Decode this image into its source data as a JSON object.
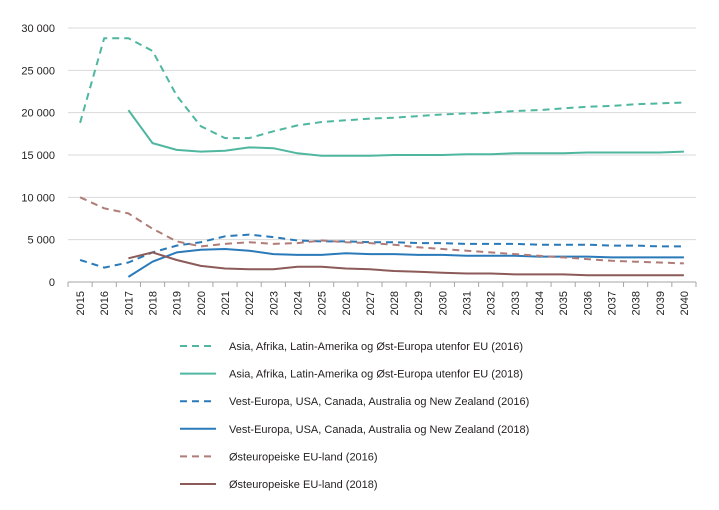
{
  "chart_data": {
    "type": "line",
    "title": "",
    "xlabel": "",
    "ylabel": "",
    "ylim": [
      0,
      30000
    ],
    "yticks": [
      0,
      5000,
      10000,
      15000,
      20000,
      25000,
      30000
    ],
    "ytick_labels": [
      "0",
      "5 000",
      "10 000",
      "15 000",
      "20 000",
      "25 000",
      "30 000"
    ],
    "x": [
      "2015",
      "2016",
      "2017",
      "2018",
      "2019",
      "2020",
      "2021",
      "2022",
      "2023",
      "2024",
      "2025",
      "2026",
      "2027",
      "2028",
      "2029",
      "2030",
      "2031",
      "2032",
      "2033",
      "2034",
      "2035",
      "2036",
      "2037",
      "2038",
      "2039",
      "2040"
    ],
    "grid": "horizontal",
    "legend_position": "bottom",
    "series": [
      {
        "name": "Asia, Afrika, Latin-Amerika og Øst-Europa utenfor EU (2016)",
        "color": "#4fb7a0",
        "dash": "dashed",
        "values": [
          18800,
          28800,
          28800,
          27300,
          22000,
          18400,
          17000,
          17000,
          17800,
          18500,
          18900,
          19100,
          19300,
          19400,
          19600,
          19800,
          19900,
          20000,
          20200,
          20300,
          20500,
          20700,
          20800,
          21000,
          21100,
          21200
        ]
      },
      {
        "name": "Asia, Afrika, Latin-Amerika og Øst-Europa utenfor EU (2018)",
        "color": "#4fb7a0",
        "dash": "solid",
        "values": [
          null,
          null,
          20300,
          16400,
          15600,
          15400,
          15500,
          15900,
          15800,
          15200,
          14900,
          14900,
          14900,
          15000,
          15000,
          15000,
          15100,
          15100,
          15200,
          15200,
          15200,
          15300,
          15300,
          15300,
          15300,
          15400
        ]
      },
      {
        "name": "Vest-Europa, USA, Canada, Australia og New Zealand (2016)",
        "color": "#2a7ab9",
        "dash": "dashed",
        "values": [
          2600,
          1700,
          2300,
          3500,
          4300,
          4700,
          5400,
          5600,
          5300,
          4900,
          4800,
          4800,
          4700,
          4700,
          4600,
          4600,
          4500,
          4500,
          4500,
          4400,
          4400,
          4400,
          4300,
          4300,
          4200,
          4200
        ]
      },
      {
        "name": "Vest-Europa, USA, Canada, Australia og New Zealand (2018)",
        "color": "#2a7ab9",
        "dash": "solid",
        "values": [
          null,
          null,
          600,
          2400,
          3500,
          3800,
          3900,
          3700,
          3300,
          3200,
          3200,
          3400,
          3300,
          3300,
          3200,
          3200,
          3100,
          3100,
          3100,
          3000,
          3000,
          3000,
          2900,
          2900,
          2900,
          2900
        ]
      },
      {
        "name": "Østeuropeiske EU-land (2016)",
        "color": "#b07c77",
        "dash": "dashed",
        "values": [
          10000,
          8700,
          8100,
          6300,
          4800,
          4200,
          4500,
          4700,
          4500,
          4600,
          4900,
          4700,
          4600,
          4400,
          4100,
          3900,
          3700,
          3500,
          3300,
          3100,
          2900,
          2700,
          2500,
          2400,
          2300,
          2200
        ]
      },
      {
        "name": "Østeuropeiske EU-land (2018)",
        "color": "#8c5a58",
        "dash": "solid",
        "values": [
          null,
          null,
          2800,
          3500,
          2600,
          1900,
          1600,
          1500,
          1500,
          1800,
          1800,
          1600,
          1500,
          1300,
          1200,
          1100,
          1000,
          1000,
          900,
          900,
          900,
          800,
          800,
          800,
          800,
          800
        ]
      }
    ]
  }
}
